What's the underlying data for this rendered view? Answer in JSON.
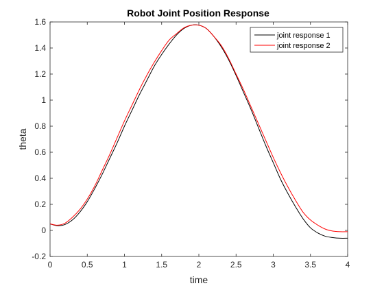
{
  "chart_data": {
    "type": "line",
    "title": "Robot Joint Position Response",
    "xlabel": "time",
    "ylabel": "theta",
    "xlim": [
      0,
      4
    ],
    "ylim": [
      -0.2,
      1.6
    ],
    "x_ticks": [
      0,
      0.5,
      1,
      1.5,
      2,
      2.5,
      3,
      3.5,
      4
    ],
    "x_tick_labels": [
      "0",
      "0.5",
      "1",
      "1.5",
      "2",
      "2.5",
      "3",
      "3.5",
      "4"
    ],
    "y_ticks": [
      -0.2,
      0,
      0.2,
      0.4,
      0.6,
      0.8,
      1,
      1.2,
      1.4,
      1.6
    ],
    "y_tick_labels": [
      "-0.2",
      "0",
      "0.2",
      "0.4",
      "0.6",
      "0.8",
      "1",
      "1.2",
      "1.4",
      "1.6"
    ],
    "grid": false,
    "legend_position": "top-right",
    "x": [
      0,
      0.1,
      0.2,
      0.3,
      0.4,
      0.5,
      0.6,
      0.7,
      0.8,
      0.9,
      1.0,
      1.1,
      1.2,
      1.3,
      1.4,
      1.5,
      1.6,
      1.7,
      1.8,
      1.9,
      2.0,
      2.1,
      2.2,
      2.3,
      2.4,
      2.5,
      2.6,
      2.7,
      2.8,
      2.9,
      3.0,
      3.1,
      3.2,
      3.3,
      3.4,
      3.5,
      3.6,
      3.7,
      3.8,
      3.9,
      4.0
    ],
    "series": [
      {
        "name": "joint response 1",
        "color": "#000000",
        "values": [
          0.05,
          0.036,
          0.045,
          0.08,
          0.14,
          0.22,
          0.32,
          0.43,
          0.55,
          0.67,
          0.8,
          0.92,
          1.04,
          1.15,
          1.26,
          1.35,
          1.43,
          1.5,
          1.55,
          1.575,
          1.575,
          1.55,
          1.49,
          1.41,
          1.31,
          1.19,
          1.06,
          0.93,
          0.79,
          0.65,
          0.52,
          0.39,
          0.28,
          0.18,
          0.09,
          0.02,
          -0.02,
          -0.045,
          -0.055,
          -0.06,
          -0.06
        ]
      },
      {
        "name": "joint response 2",
        "color": "#ff0000",
        "values": [
          0.05,
          0.04,
          0.055,
          0.1,
          0.16,
          0.24,
          0.34,
          0.46,
          0.58,
          0.71,
          0.84,
          0.96,
          1.08,
          1.19,
          1.29,
          1.38,
          1.46,
          1.51,
          1.555,
          1.575,
          1.575,
          1.55,
          1.49,
          1.42,
          1.32,
          1.2,
          1.08,
          0.95,
          0.82,
          0.69,
          0.56,
          0.44,
          0.33,
          0.23,
          0.14,
          0.08,
          0.04,
          0.01,
          -0.005,
          -0.01,
          -0.01
        ]
      }
    ]
  }
}
